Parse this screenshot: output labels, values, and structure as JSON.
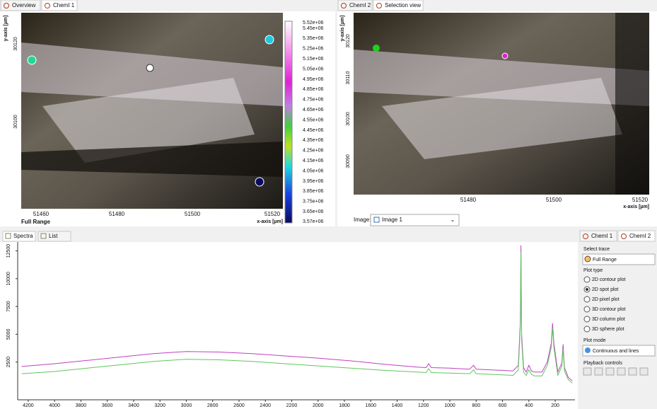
{
  "left_panel": {
    "tabs": [
      "Overview",
      "ChemI 1"
    ],
    "y_axis_label": "y-axis [µm]",
    "y_ticks": [
      "30120",
      "30100"
    ],
    "x_ticks": [
      "51460",
      "51480",
      "51500",
      "51520"
    ],
    "x_axis_label": "x-axis [µm]",
    "trace_label": "Full Range",
    "colorbar": [
      "5.52e+06",
      "5.45e+06",
      "5.35e+06",
      "5.25e+06",
      "5.15e+06",
      "5.05e+06",
      "4.95e+06",
      "4.85e+06",
      "4.75e+06",
      "4.65e+06",
      "4.55e+06",
      "4.45e+06",
      "4.35e+06",
      "4.25e+06",
      "4.15e+06",
      "4.05e+06",
      "3.95e+06",
      "3.85e+06",
      "3.75e+06",
      "3.65e+06",
      "3.57e+06"
    ]
  },
  "right_panel": {
    "tabs": [
      "ChemI 2",
      "Selection view"
    ],
    "y_axis_label": "y-axis [µm]",
    "y_ticks": [
      "30120",
      "30110",
      "30100",
      "30090"
    ],
    "x_ticks": [
      "51480",
      "51500",
      "51520"
    ],
    "x_axis_label": "x-axis [µm]",
    "image_label": "Image:",
    "image_select": "Image 1"
  },
  "bottom_tabs": [
    "Spectra",
    "List"
  ],
  "chart_data": {
    "type": "line",
    "x": [
      4250,
      4000,
      3750,
      3500,
      3250,
      3000,
      2750,
      2500,
      2250,
      2000,
      1750,
      1500,
      1250,
      1180,
      1160,
      1140,
      1000,
      850,
      820,
      800,
      700,
      600,
      520,
      480,
      465,
      460,
      455,
      440,
      420,
      400,
      380,
      360,
      300,
      260,
      230,
      220,
      210,
      180,
      150,
      140,
      130,
      100,
      70
    ],
    "series": [
      {
        "color": "#c040c0",
        "values": [
          2100,
          2350,
          2650,
          2950,
          3250,
          3450,
          3400,
          3250,
          3050,
          2850,
          2600,
          2300,
          2050,
          2000,
          2350,
          2000,
          1950,
          1850,
          2200,
          1850,
          1800,
          1750,
          1700,
          2200,
          6000,
          13000,
          5000,
          2000,
          1600,
          2200,
          1700,
          1600,
          1600,
          2500,
          4200,
          6000,
          4200,
          1600,
          2400,
          4100,
          2000,
          1100,
          800
        ]
      },
      {
        "color": "#5cc85c",
        "values": [
          1450,
          1650,
          1950,
          2250,
          2550,
          2750,
          2700,
          2550,
          2350,
          2150,
          1950,
          1750,
          1600,
          1550,
          1900,
          1550,
          1500,
          1450,
          1800,
          1450,
          1400,
          1350,
          1300,
          1800,
          5500,
          12400,
          4500,
          1600,
          1300,
          1800,
          1400,
          1250,
          1250,
          2200,
          3800,
          5600,
          3800,
          1300,
          2100,
          3700,
          1700,
          900,
          600
        ]
      }
    ],
    "xlim": [
      4280,
      50
    ],
    "ylim": [
      -900,
      13300
    ],
    "xticks": [
      4200,
      4000,
      3800,
      3600,
      3400,
      3200,
      3000,
      2800,
      2600,
      2400,
      2200,
      2000,
      1800,
      1600,
      1400,
      1200,
      1000,
      800,
      600,
      400,
      200
    ],
    "yticks": [
      2500,
      5000,
      7500,
      10000,
      12500
    ]
  },
  "side_panel": {
    "tabs": [
      "ChemI 1",
      "ChemI 2"
    ],
    "select_trace_label": "Select trace",
    "trace": "Full Range",
    "plot_type_label": "Plot type",
    "plot_types": [
      "2D contour plot",
      "2D spot plot",
      "2D pixel plot",
      "3D contour plot",
      "3D column plot",
      "3D sphere plot"
    ],
    "checked": 1,
    "plot_mode_label": "Plot mode",
    "plot_mode": "Continuous and lines",
    "playback_label": "Playback controls"
  }
}
